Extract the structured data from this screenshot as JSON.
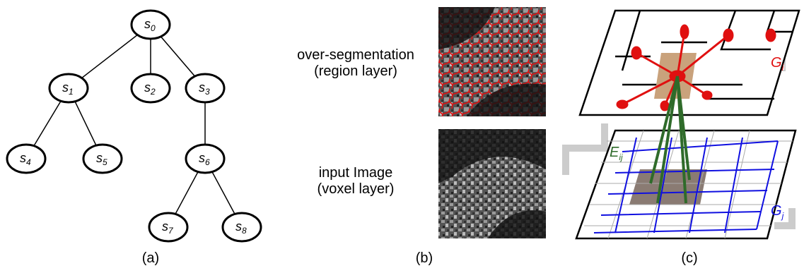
{
  "tree": {
    "nodes": [
      {
        "label": "s",
        "sub": "0"
      },
      {
        "label": "s",
        "sub": "1"
      },
      {
        "label": "s",
        "sub": "2"
      },
      {
        "label": "s",
        "sub": "3"
      },
      {
        "label": "s",
        "sub": "4"
      },
      {
        "label": "s",
        "sub": "5"
      },
      {
        "label": "s",
        "sub": "6"
      },
      {
        "label": "s",
        "sub": "7"
      },
      {
        "label": "s",
        "sub": "8"
      }
    ],
    "caption": "(a)"
  },
  "layers": {
    "top": [
      "over-segmentation",
      "(region layer)"
    ],
    "bottom": [
      "input Image",
      "(voxel layer)"
    ],
    "caption": "(b)"
  },
  "graph": {
    "gi": {
      "label": "G",
      "sub": "i"
    },
    "eij": {
      "label": "E",
      "sub": "ij"
    },
    "gj": {
      "label": "G",
      "sub": "j"
    },
    "caption": "(c)"
  }
}
